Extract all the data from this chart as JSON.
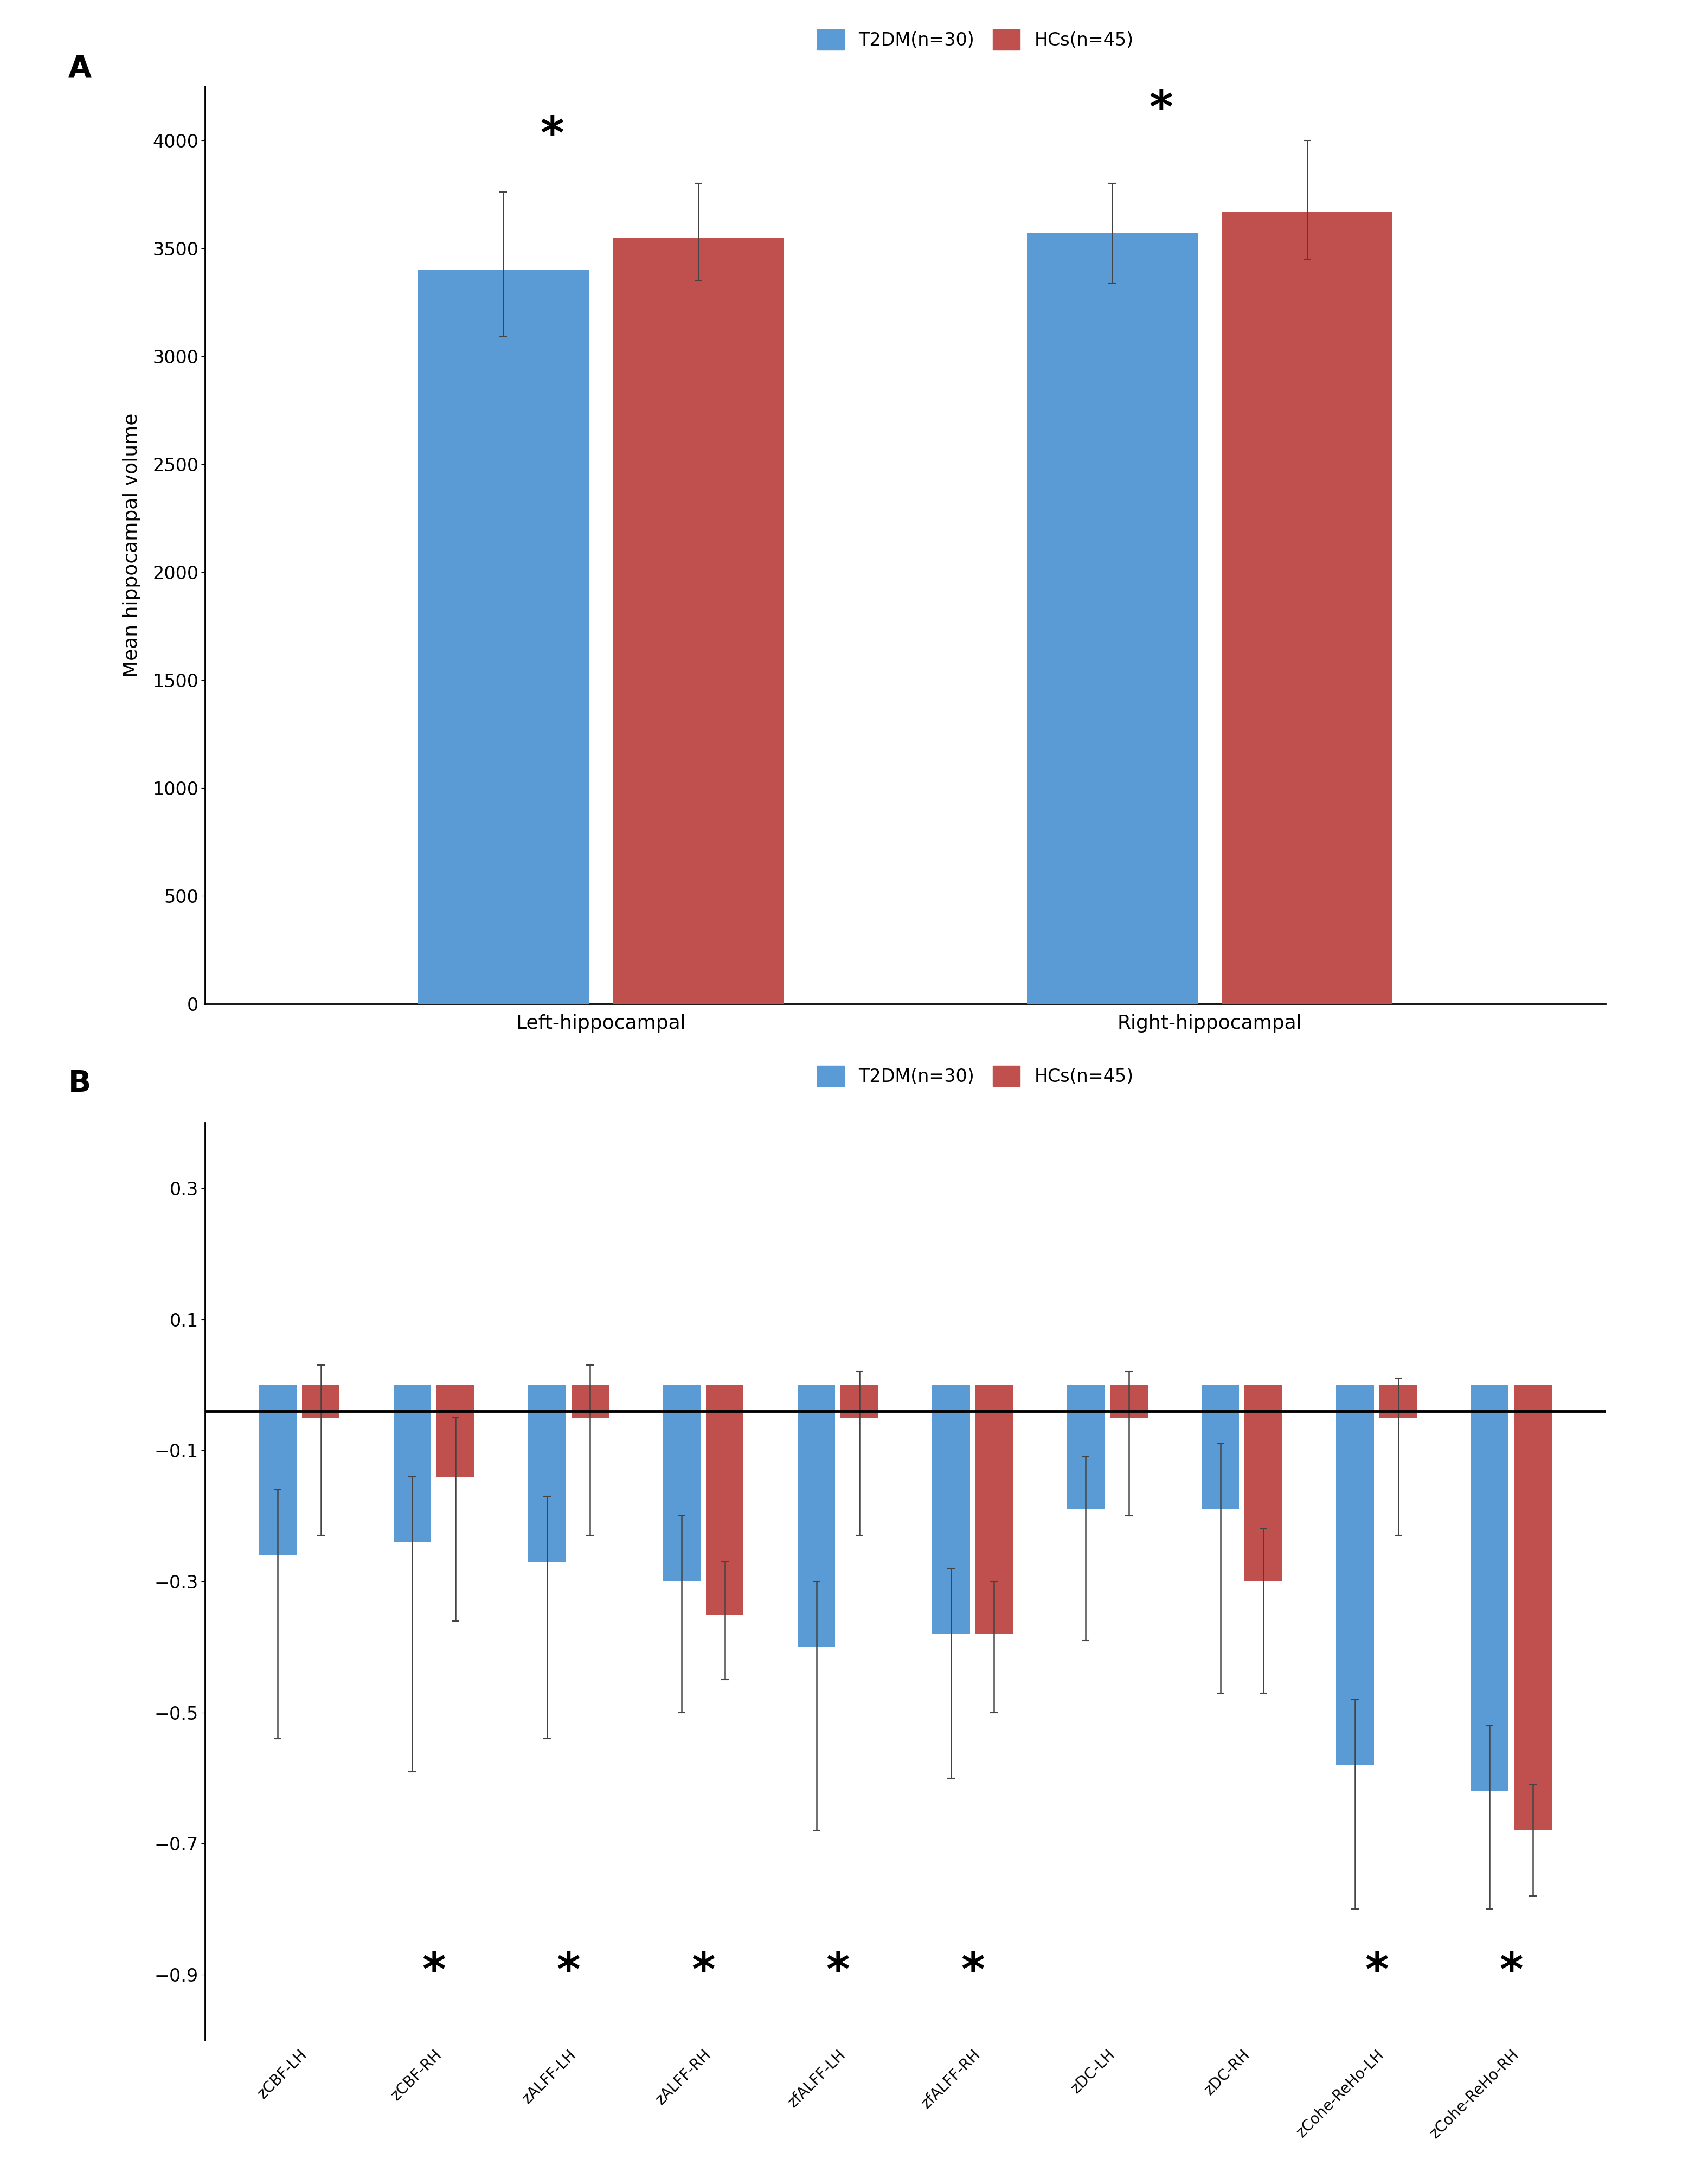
{
  "panel_A": {
    "categories": [
      "Left-hippocampal",
      "Right-hippocampal"
    ],
    "t2dm_values": [
      3400,
      3570
    ],
    "hcs_values": [
      3550,
      3670
    ],
    "t2dm_errors_up": [
      360,
      230
    ],
    "t2dm_errors_dn": [
      310,
      230
    ],
    "hcs_errors_up": [
      250,
      330
    ],
    "hcs_errors_dn": [
      200,
      220
    ],
    "ylabel": "Mean hippocampal volume",
    "ylim": [
      0,
      4250
    ],
    "yticks": [
      0,
      500,
      1000,
      1500,
      2000,
      2500,
      3000,
      3500,
      4000
    ],
    "significant_pairs": [
      0,
      1
    ],
    "t2dm_color": "#5b9bd5",
    "hcs_color": "#c0504d",
    "bar_width": 0.28
  },
  "panel_B": {
    "categories": [
      "zCBF-LH",
      "zCBF-RH",
      "zALFF-LH",
      "zALFF-RH",
      "zfALFF-LH",
      "zfALFF-RH",
      "zDC-LH",
      "zDC-RH",
      "zCohe-ReHo-LH",
      "zCohe-ReHo-RH"
    ],
    "t2dm_values": [
      -0.26,
      -0.24,
      -0.27,
      -0.3,
      -0.4,
      -0.38,
      -0.19,
      -0.19,
      -0.58,
      -0.62
    ],
    "hcs_values": [
      -0.05,
      -0.14,
      -0.05,
      -0.35,
      -0.05,
      -0.38,
      -0.05,
      -0.3,
      -0.05,
      -0.68
    ],
    "t2dm_errors_up": [
      0.1,
      0.1,
      0.1,
      0.1,
      0.1,
      0.1,
      0.08,
      0.1,
      0.1,
      0.1
    ],
    "t2dm_errors_dn": [
      0.28,
      0.35,
      0.27,
      0.2,
      0.28,
      0.22,
      0.2,
      0.28,
      0.22,
      0.18
    ],
    "hcs_errors_up": [
      0.08,
      0.09,
      0.08,
      0.08,
      0.07,
      0.08,
      0.07,
      0.08,
      0.06,
      0.07
    ],
    "hcs_errors_dn": [
      0.18,
      0.22,
      0.18,
      0.1,
      0.18,
      0.12,
      0.15,
      0.17,
      0.18,
      0.1
    ],
    "ylim": [
      -1.0,
      0.4
    ],
    "yticks": [
      0.3,
      0.1,
      -0.1,
      -0.3,
      -0.5,
      -0.7,
      -0.9
    ],
    "significant_indices": [
      1,
      2,
      3,
      4,
      5,
      8,
      9
    ],
    "t2dm_color": "#5b9bd5",
    "hcs_color": "#c0504d",
    "bar_width": 0.28,
    "zero_line_y": -0.04
  },
  "legend_t2dm": "T2DM(n=30)",
  "legend_hcs": "HCs(n=45)",
  "label_A": "A",
  "label_B": "B"
}
